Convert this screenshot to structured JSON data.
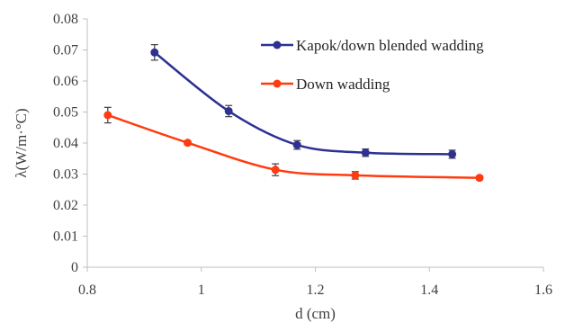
{
  "chart_data": {
    "type": "scatter",
    "xlabel": "d (cm)",
    "ylabel": "λ(W/m·°C)",
    "xlim": [
      0.8,
      1.6
    ],
    "ylim": [
      0,
      0.08
    ],
    "xticks": [
      0.8,
      1,
      1.2,
      1.4,
      1.6
    ],
    "yticks": [
      0,
      0.01,
      0.02,
      0.03,
      0.04,
      0.05,
      0.06,
      0.07,
      0.08
    ],
    "xtick_labels": [
      "0.8",
      "1",
      "1.2",
      "1.4",
      "1.6"
    ],
    "ytick_labels": [
      "0",
      "0.01",
      "0.02",
      "0.03",
      "0.04",
      "0.05",
      "0.06",
      "0.07",
      "0.08"
    ],
    "grid": false,
    "legend_position": "top-right",
    "line_style": "smoothed with markers and error bars",
    "series": [
      {
        "name": "Kapok/down blended wadding",
        "color": "#2e3192",
        "x": [
          0.918,
          1.048,
          1.168,
          1.288,
          1.44
        ],
        "y": [
          0.0692,
          0.0503,
          0.0394,
          0.0369,
          0.0364
        ],
        "error": [
          0.0025,
          0.0018,
          0.0014,
          0.0012,
          0.0013
        ]
      },
      {
        "name": "Down wadding",
        "color": "#ff3b0f",
        "x": [
          0.836,
          0.976,
          1.13,
          1.27,
          1.488
        ],
        "y": [
          0.049,
          0.0401,
          0.0314,
          0.0296,
          0.0288
        ],
        "error": [
          0.0025,
          0.0006,
          0.0019,
          0.0012,
          0.0006
        ]
      }
    ]
  }
}
